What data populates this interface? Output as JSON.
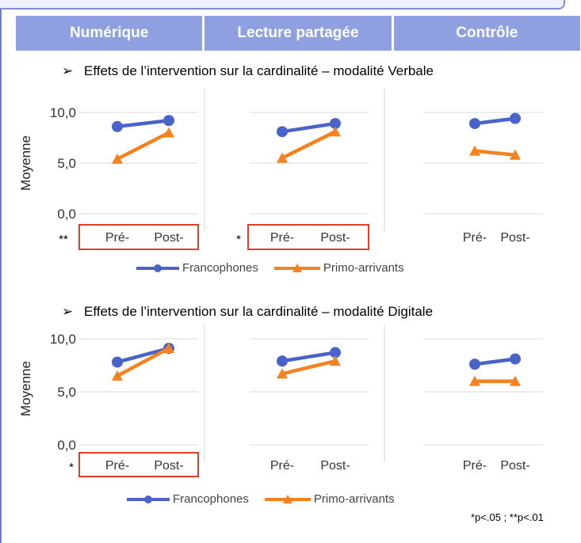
{
  "header": {
    "columns": [
      "Numérique",
      "Lecture partagée",
      "Contrôle"
    ],
    "color": "#8ea0e0"
  },
  "legend": {
    "francophones": "Francophones",
    "primo": "Primo-arrivants"
  },
  "footnote": "*p<.05 ; **p<.01",
  "colors": {
    "francophones": "#4a63c8",
    "primo": "#f5821f",
    "highlight": "#e0402a",
    "grid": "#d9d9d9"
  },
  "chart_data": [
    {
      "type": "line",
      "title": "Effets de l’intervention sur la cardinalité – modalité Verbale",
      "ylabel": "Moyenne",
      "ylim": [
        0,
        10
      ],
      "yticks": [
        "10,0",
        "5,0",
        "0,0"
      ],
      "panels": [
        {
          "name": "Numérique",
          "categories": [
            "Pré-",
            "Post-"
          ],
          "significance": "**",
          "highlighted": true,
          "series": [
            {
              "name": "Francophones",
              "values": [
                8.6,
                9.2
              ]
            },
            {
              "name": "Primo-arrivants",
              "values": [
                5.4,
                8.0
              ]
            }
          ]
        },
        {
          "name": "Lecture partagée",
          "categories": [
            "Pré-",
            "Post-"
          ],
          "significance": "*",
          "highlighted": true,
          "series": [
            {
              "name": "Francophones",
              "values": [
                8.1,
                8.9
              ]
            },
            {
              "name": "Primo-arrivants",
              "values": [
                5.5,
                8.1
              ]
            }
          ]
        },
        {
          "name": "Contrôle",
          "categories": [
            "Pré-",
            "Post-"
          ],
          "significance": "",
          "highlighted": false,
          "series": [
            {
              "name": "Francophones",
              "values": [
                8.9,
                9.4
              ]
            },
            {
              "name": "Primo-arrivants",
              "values": [
                6.2,
                5.8
              ]
            }
          ]
        }
      ]
    },
    {
      "type": "line",
      "title": "Effets de l’intervention sur la cardinalité – modalité Digitale",
      "ylabel": "Moyenne",
      "ylim": [
        0,
        10
      ],
      "yticks": [
        "10,0",
        "5,0",
        "0,0"
      ],
      "panels": [
        {
          "name": "Numérique",
          "categories": [
            "Pré-",
            "Post-"
          ],
          "significance": "*",
          "highlighted": true,
          "series": [
            {
              "name": "Francophones",
              "values": [
                7.8,
                9.1
              ]
            },
            {
              "name": "Primo-arrivants",
              "values": [
                6.5,
                9.1
              ]
            }
          ]
        },
        {
          "name": "Lecture partagée",
          "categories": [
            "Pré-",
            "Post-"
          ],
          "significance": "",
          "highlighted": false,
          "series": [
            {
              "name": "Francophones",
              "values": [
                7.9,
                8.7
              ]
            },
            {
              "name": "Primo-arrivants",
              "values": [
                6.7,
                7.9
              ]
            }
          ]
        },
        {
          "name": "Contrôle",
          "categories": [
            "Pré-",
            "Post-"
          ],
          "significance": "",
          "highlighted": false,
          "series": [
            {
              "name": "Francophones",
              "values": [
                7.6,
                8.1
              ]
            },
            {
              "name": "Primo-arrivants",
              "values": [
                6.0,
                6.0
              ]
            }
          ]
        }
      ]
    }
  ]
}
